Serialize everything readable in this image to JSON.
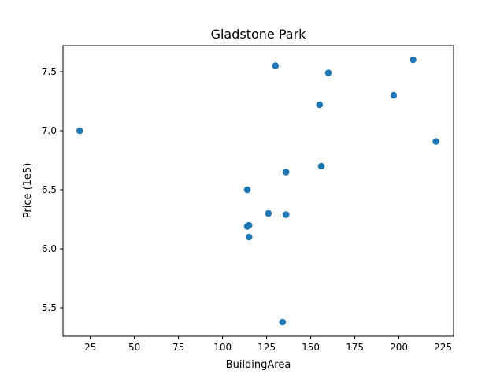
{
  "chart_data": {
    "type": "scatter",
    "title": "Gladstone Park",
    "xlabel": "BuildingArea",
    "ylabel": "Price (1e5)",
    "xlim": [
      9.5,
      231
    ],
    "ylim": [
      5.26,
      7.72
    ],
    "xticks": [
      25,
      50,
      75,
      100,
      125,
      150,
      175,
      200,
      225
    ],
    "yticks": [
      5.5,
      6.0,
      6.5,
      7.0,
      7.5
    ],
    "xtick_labels": [
      "25",
      "50",
      "75",
      "100",
      "125",
      "150",
      "175",
      "200",
      "225"
    ],
    "ytick_labels": [
      "5.5",
      "6.0",
      "6.5",
      "7.0",
      "7.5"
    ],
    "grid": false,
    "marker_color": "#1f77b4",
    "points": [
      {
        "x": 19,
        "y": 7.0
      },
      {
        "x": 114,
        "y": 6.5
      },
      {
        "x": 114,
        "y": 6.19
      },
      {
        "x": 115,
        "y": 6.2
      },
      {
        "x": 115,
        "y": 6.1
      },
      {
        "x": 126,
        "y": 6.3
      },
      {
        "x": 130,
        "y": 7.55
      },
      {
        "x": 134,
        "y": 5.38
      },
      {
        "x": 136,
        "y": 6.65
      },
      {
        "x": 136,
        "y": 6.29
      },
      {
        "x": 155,
        "y": 7.22
      },
      {
        "x": 156,
        "y": 6.7
      },
      {
        "x": 160,
        "y": 7.49
      },
      {
        "x": 197,
        "y": 7.3
      },
      {
        "x": 208,
        "y": 7.6
      },
      {
        "x": 221,
        "y": 6.91
      }
    ]
  }
}
